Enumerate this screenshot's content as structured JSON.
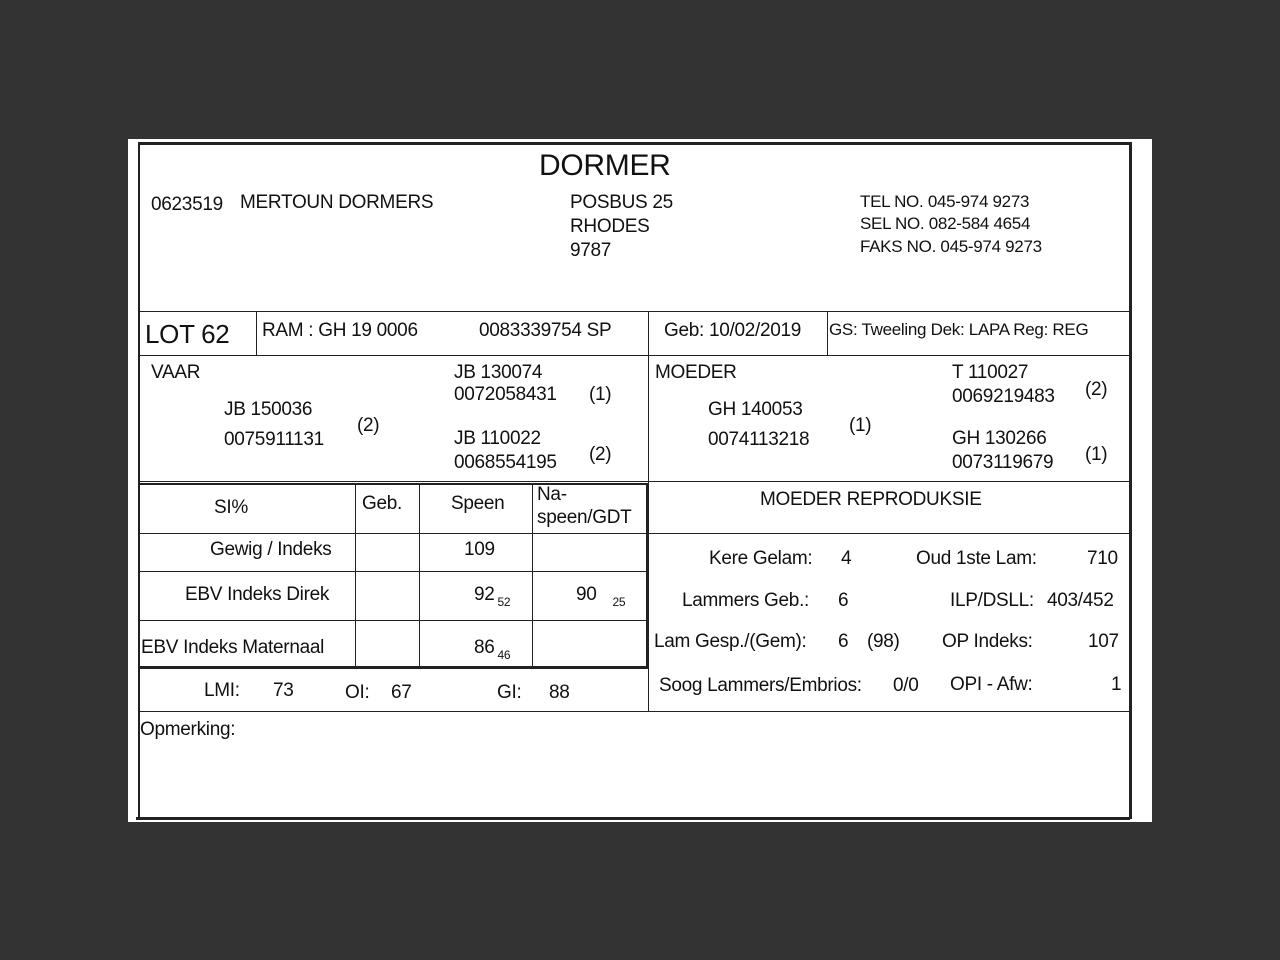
{
  "title": "DORMER",
  "breeder": {
    "id": "0623519",
    "name": "MERTOUN DORMERS"
  },
  "address": [
    "POSBUS 25",
    "RHODES",
    "9787"
  ],
  "contact": [
    "TEL NO. 045-974 9273",
    "SEL NO. 082-584 4654",
    "FAKS NO. 045-974 9273"
  ],
  "lot": {
    "lot": "LOT 62",
    "ram": "RAM : GH 19 0006",
    "reg_no": "0083339754  SP",
    "geb": "Geb: 10/02/2019",
    "gs": "GS: Tweeling Dek: LAPA Reg: REG"
  },
  "pedigree": {
    "vaar_label": "VAAR",
    "vaar_id": "JB  150036",
    "vaar_no": "0075911131",
    "vaar_n": "(2)",
    "vv_id": "JB  130074",
    "vv_no": "0072058431",
    "vv_n": "(1)",
    "vm_id": "JB  110022",
    "vm_no": "0068554195",
    "vm_n": "(2)",
    "moeder_label": "MOEDER",
    "moeder_id": "GH  140053",
    "moeder_no": "0074113218",
    "moeder_n": "(1)",
    "mv_id": "T   110027",
    "mv_no": "0069219483",
    "mv_n": "(2)",
    "mm_id": "GH  130266",
    "mm_no": "0073119679",
    "mm_n": "(1)"
  },
  "si_table": {
    "headers": [
      "SI%",
      "Geb.",
      "Speen",
      "Na-",
      "speen/GDT"
    ],
    "rows": [
      {
        "label": "Gewig / Indeks",
        "geb": "",
        "speen": "109",
        "speen_sub": "",
        "na": "",
        "na_sub": ""
      },
      {
        "label": "EBV Indeks Direk",
        "geb": "",
        "speen": "92",
        "speen_sub": "52",
        "na": "90",
        "na_sub": "25"
      },
      {
        "label": "EBV Indeks Maternaal",
        "geb": "",
        "speen": "86",
        "speen_sub": "46",
        "na": "",
        "na_sub": ""
      }
    ],
    "lmi_label": "LMI:",
    "lmi": "73",
    "oi_label": "OI:",
    "oi": "67",
    "gi_label": "GI:",
    "gi": "88"
  },
  "reproduksie": {
    "title": "MOEDER REPRODUKSIE",
    "kere_label": "Kere Gelam:",
    "kere": "4",
    "oud_label": "Oud 1ste Lam:",
    "oud": "710",
    "lammers_label": "Lammers Geb.:",
    "lammers": "6",
    "ilp_label": "ILP/DSLL:",
    "ilp": "403/452",
    "gesp_label": "Lam Gesp./(Gem):",
    "gesp": "6",
    "gem": "(98)",
    "op_label": "OP Indeks:",
    "op": "107",
    "soog_label": "Soog Lammers/Embrios:",
    "soog": "0/0",
    "opi_label": "OPI - Afw:",
    "opi": "1"
  },
  "opmerking": "Opmerking:"
}
